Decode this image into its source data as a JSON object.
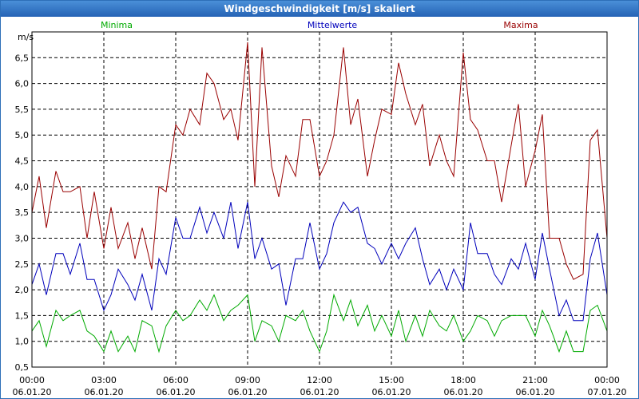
{
  "window": {
    "title": "Windgeschwindigkeit [m/s] skaliert"
  },
  "colors": {
    "min": "#00aa00",
    "mean": "#0000bb",
    "max": "#990000",
    "titlebar": "#2563b5"
  },
  "chart_data": {
    "type": "line",
    "title": "Windgeschwindigkeit [m/s] skaliert",
    "ylabel": "m/s",
    "ylim": [
      0.5,
      7.0
    ],
    "yticks": [
      "0,5",
      "1,0",
      "1,5",
      "2,0",
      "2,5",
      "3,0",
      "3,5",
      "4,0",
      "4,5",
      "5,0",
      "5,5",
      "6,0",
      "6,5"
    ],
    "ytick_values": [
      0.5,
      1.0,
      1.5,
      2.0,
      2.5,
      3.0,
      3.5,
      4.0,
      4.5,
      5.0,
      5.5,
      6.0,
      6.5
    ],
    "xlim_hours": [
      0,
      24
    ],
    "xticks": [
      {
        "hour": 0,
        "time": "00:00",
        "date": "06.01.20"
      },
      {
        "hour": 3,
        "time": "03:00",
        "date": "06.01.20"
      },
      {
        "hour": 6,
        "time": "06:00",
        "date": "06.01.20"
      },
      {
        "hour": 9,
        "time": "09:00",
        "date": "06.01.20"
      },
      {
        "hour": 12,
        "time": "12:00",
        "date": "06.01.20"
      },
      {
        "hour": 15,
        "time": "15:00",
        "date": "06.01.20"
      },
      {
        "hour": 18,
        "time": "18:00",
        "date": "06.01.20"
      },
      {
        "hour": 21,
        "time": "21:00",
        "date": "06.01.20"
      },
      {
        "hour": 24,
        "time": "00:00",
        "date": "07.01.20"
      }
    ],
    "series": [
      {
        "name": "Minima",
        "color": "#00aa00",
        "x": [
          0,
          0.3,
          0.6,
          1,
          1.3,
          1.6,
          2,
          2.3,
          2.6,
          3,
          3.3,
          3.6,
          4,
          4.3,
          4.6,
          5,
          5.3,
          5.6,
          6,
          6.3,
          6.6,
          7,
          7.3,
          7.6,
          8,
          8.3,
          8.6,
          9,
          9.3,
          9.6,
          10,
          10.3,
          10.6,
          11,
          11.3,
          11.6,
          12,
          12.3,
          12.6,
          13,
          13.3,
          13.6,
          14,
          14.3,
          14.6,
          15,
          15.3,
          15.6,
          16,
          16.3,
          16.6,
          17,
          17.3,
          17.6,
          18,
          18.3,
          18.6,
          19,
          19.3,
          19.6,
          20,
          20.3,
          20.6,
          21,
          21.3,
          21.6,
          22,
          22.3,
          22.6,
          23,
          23.3,
          23.6,
          24
        ],
        "values": [
          1.2,
          1.4,
          0.9,
          1.6,
          1.4,
          1.5,
          1.6,
          1.2,
          1.1,
          0.8,
          1.2,
          0.8,
          1.1,
          0.8,
          1.4,
          1.3,
          0.8,
          1.3,
          1.6,
          1.4,
          1.5,
          1.8,
          1.6,
          1.9,
          1.4,
          1.6,
          1.7,
          1.9,
          1.0,
          1.4,
          1.3,
          1.0,
          1.5,
          1.4,
          1.6,
          1.2,
          0.8,
          1.2,
          1.9,
          1.4,
          1.8,
          1.3,
          1.7,
          1.2,
          1.5,
          1.1,
          1.6,
          1.0,
          1.5,
          1.1,
          1.6,
          1.3,
          1.2,
          1.5,
          1.0,
          1.2,
          1.5,
          1.4,
          1.1,
          1.4,
          1.5,
          1.5,
          1.5,
          1.1,
          1.6,
          1.3,
          0.8,
          1.2,
          0.8,
          0.8,
          1.6,
          1.7,
          1.2
        ]
      },
      {
        "name": "Mittelwerte",
        "color": "#0000bb",
        "x": [
          0,
          0.3,
          0.6,
          1,
          1.3,
          1.6,
          2,
          2.3,
          2.6,
          3,
          3.3,
          3.6,
          4,
          4.3,
          4.6,
          5,
          5.3,
          5.6,
          6,
          6.3,
          6.6,
          7,
          7.3,
          7.6,
          8,
          8.3,
          8.6,
          9,
          9.3,
          9.6,
          10,
          10.3,
          10.6,
          11,
          11.3,
          11.6,
          12,
          12.3,
          12.6,
          13,
          13.3,
          13.6,
          14,
          14.3,
          14.6,
          15,
          15.3,
          15.6,
          16,
          16.3,
          16.6,
          17,
          17.3,
          17.6,
          18,
          18.3,
          18.6,
          19,
          19.3,
          19.6,
          20,
          20.3,
          20.6,
          21,
          21.3,
          21.6,
          22,
          22.3,
          22.6,
          23,
          23.3,
          23.6,
          24
        ],
        "values": [
          2.1,
          2.5,
          1.9,
          2.7,
          2.7,
          2.3,
          2.9,
          2.2,
          2.2,
          1.6,
          1.9,
          2.4,
          2.1,
          1.8,
          2.3,
          1.6,
          2.6,
          2.3,
          3.4,
          3.0,
          3.0,
          3.6,
          3.1,
          3.5,
          3.0,
          3.7,
          2.8,
          3.7,
          2.6,
          3.0,
          2.4,
          2.5,
          1.7,
          2.6,
          2.6,
          3.3,
          2.4,
          2.7,
          3.3,
          3.7,
          3.5,
          3.6,
          2.9,
          2.8,
          2.5,
          2.9,
          2.6,
          2.9,
          3.2,
          2.6,
          2.1,
          2.4,
          2.0,
          2.4,
          2.0,
          3.3,
          2.7,
          2.7,
          2.3,
          2.1,
          2.6,
          2.4,
          2.9,
          2.2,
          3.1,
          2.4,
          1.5,
          1.8,
          1.4,
          1.4,
          2.6,
          3.1,
          1.9
        ]
      },
      {
        "name": "Maxima",
        "color": "#990000",
        "x": [
          0,
          0.3,
          0.6,
          1,
          1.3,
          1.6,
          2,
          2.3,
          2.6,
          3,
          3.3,
          3.6,
          4,
          4.3,
          4.6,
          5,
          5.3,
          5.6,
          6,
          6.3,
          6.6,
          7,
          7.3,
          7.6,
          8,
          8.3,
          8.6,
          9,
          9.3,
          9.6,
          10,
          10.3,
          10.6,
          11,
          11.3,
          11.6,
          12,
          12.3,
          12.6,
          13,
          13.3,
          13.6,
          14,
          14.3,
          14.6,
          15,
          15.3,
          15.6,
          16,
          16.3,
          16.6,
          17,
          17.3,
          17.6,
          18,
          18.3,
          18.6,
          19,
          19.3,
          19.6,
          20,
          20.3,
          20.6,
          21,
          21.3,
          21.6,
          22,
          22.3,
          22.6,
          23,
          23.3,
          23.6,
          24
        ],
        "values": [
          3.5,
          4.2,
          3.2,
          4.3,
          3.9,
          3.9,
          4.0,
          3.0,
          3.9,
          2.8,
          3.6,
          2.8,
          3.3,
          2.6,
          3.2,
          2.4,
          4.0,
          3.9,
          5.2,
          5.0,
          5.5,
          5.2,
          6.2,
          6.0,
          5.3,
          5.5,
          4.9,
          6.8,
          4.0,
          6.7,
          4.4,
          3.8,
          4.6,
          4.2,
          5.3,
          5.3,
          4.2,
          4.5,
          5.0,
          6.7,
          5.2,
          5.7,
          4.2,
          4.9,
          5.5,
          5.4,
          6.4,
          5.8,
          5.2,
          5.6,
          4.4,
          5.0,
          4.5,
          4.2,
          6.6,
          5.3,
          5.1,
          4.5,
          4.5,
          3.7,
          4.8,
          5.6,
          4.0,
          4.7,
          5.4,
          3.0,
          3.0,
          2.5,
          2.2,
          2.3,
          4.9,
          5.1,
          3.0
        ]
      }
    ]
  }
}
